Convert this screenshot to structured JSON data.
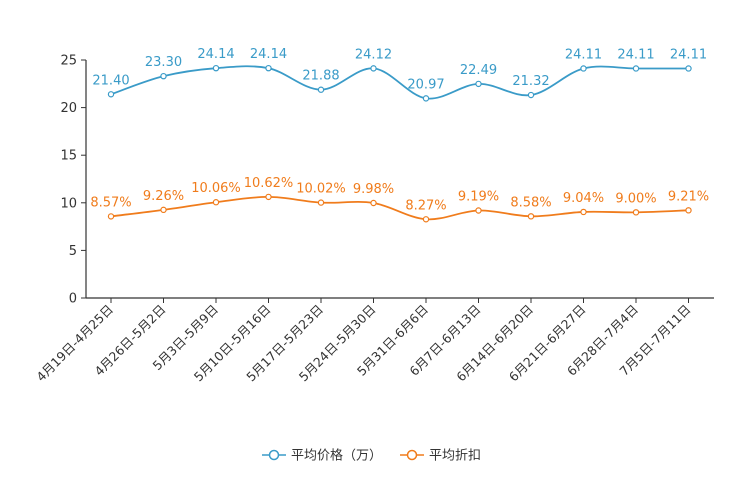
{
  "chart_data": {
    "type": "line",
    "categories": [
      "4月19日-4月25日",
      "4月26日-5月2日",
      "5月3日-5月9日",
      "5月10日-5月16日",
      "5月17日-5月23日",
      "5月24日-5月30日",
      "5月31日-6月6日",
      "6月7日-6月13日",
      "6月14日-6月20日",
      "6月21日-6月27日",
      "6月28日-7月4日",
      "7月5日-7月11日"
    ],
    "series": [
      {
        "name": "平均价格（万）",
        "color": "#3a9bc8",
        "values": [
          21.4,
          23.3,
          24.14,
          24.14,
          21.88,
          24.12,
          20.97,
          22.49,
          21.32,
          24.11,
          24.11,
          24.11
        ],
        "labels": [
          "21.40",
          "23.30",
          "24.14",
          "24.14",
          "21.88",
          "24.12",
          "20.97",
          "22.49",
          "21.32",
          "24.11",
          "24.11",
          "24.11"
        ]
      },
      {
        "name": "平均折扣",
        "color": "#f07c1c",
        "values": [
          8.57,
          9.26,
          10.06,
          10.62,
          10.02,
          9.98,
          8.27,
          9.19,
          8.58,
          9.04,
          9.0,
          9.21
        ],
        "labels": [
          "8.57%",
          "9.26%",
          "10.06%",
          "10.62%",
          "10.02%",
          "9.98%",
          "8.27%",
          "9.19%",
          "8.58%",
          "9.04%",
          "9.00%",
          "9.21%"
        ]
      }
    ],
    "y_ticks": [
      "0",
      "5",
      "10",
      "15",
      "20",
      "25"
    ],
    "ylim": [
      0,
      25
    ],
    "grid": false,
    "legend": "bottom"
  }
}
